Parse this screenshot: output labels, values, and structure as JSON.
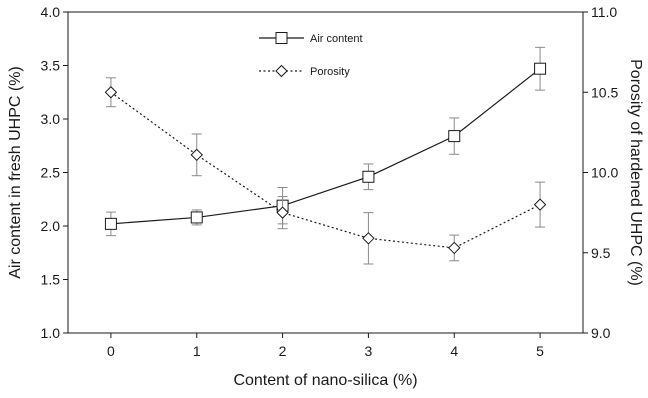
{
  "chart_data": {
    "type": "line",
    "title": "",
    "xlabel": "Content of nano-silica (%)",
    "ylabel_left": "Air content in fresh UHPC (%)",
    "ylabel_right": "Porosity of hardened UHPC (%)",
    "x": [
      0,
      1,
      2,
      3,
      4,
      5
    ],
    "x_tick_labels": [
      "0",
      "1",
      "2",
      "3",
      "4",
      "5"
    ],
    "xlim": [
      -0.5,
      5.5
    ],
    "ylim_left": [
      1.0,
      4.0
    ],
    "ylim_right": [
      9.0,
      11.0
    ],
    "y_left_tick_labels": [
      "1.0",
      "1.5",
      "2.0",
      "2.5",
      "3.0",
      "3.5",
      "4.0"
    ],
    "y_right_tick_labels": [
      "9.0",
      "9.5",
      "10.0",
      "10.5",
      "11.0"
    ],
    "grid": false,
    "legend_position": "top-center",
    "series": [
      {
        "name": "Air content",
        "axis": "left",
        "marker": "square",
        "line_style": "solid",
        "color": "#1a1a1a",
        "values": [
          2.02,
          2.08,
          2.19,
          2.46,
          2.84,
          3.47
        ],
        "error": [
          0.11,
          0.07,
          0.17,
          0.12,
          0.17,
          0.2
        ]
      },
      {
        "name": "Porosity",
        "axis": "right",
        "marker": "diamond",
        "line_style": "dotted",
        "color": "#1a1a1a",
        "values": [
          10.5,
          10.11,
          9.75,
          9.59,
          9.53,
          9.8
        ],
        "error": [
          0.09,
          0.13,
          0.1,
          0.16,
          0.08,
          0.14
        ]
      }
    ]
  }
}
